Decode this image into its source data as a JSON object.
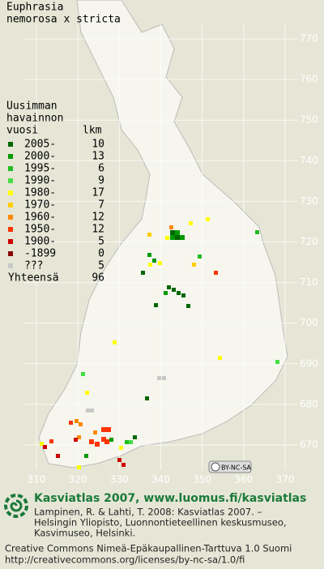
{
  "title": [
    "Euphrasia",
    "nemorosa x stricta"
  ],
  "legend": {
    "heading": [
      "Uusimman",
      "havainnon",
      "vuosi"
    ],
    "count_heading": "lkm",
    "rows": [
      {
        "label": "2005-",
        "count": 10,
        "color": "#006600"
      },
      {
        "label": "2000-",
        "count": 13,
        "color": "#009900"
      },
      {
        "label": "1995-",
        "count": 6,
        "color": "#22bb22"
      },
      {
        "label": "1990-",
        "count": 9,
        "color": "#44dd44"
      },
      {
        "label": "1980-",
        "count": 17,
        "color": "#ffff00"
      },
      {
        "label": "1970-",
        "count": 7,
        "color": "#ffcc00"
      },
      {
        "label": "1960-",
        "count": 12,
        "color": "#ff8800"
      },
      {
        "label": "1950-",
        "count": 12,
        "color": "#ff3300"
      },
      {
        "label": "1900-",
        "count": 5,
        "color": "#cc0000"
      },
      {
        "label": "-1899",
        "count": 0,
        "color": "#880000"
      },
      {
        "label": "???",
        "count": 5,
        "color": "#c8c8c8"
      }
    ],
    "total_label": "Yhteensä",
    "total": 96
  },
  "grid": {
    "x_labels": [
      310,
      320,
      330,
      340,
      350,
      360,
      370
    ],
    "y_labels": [
      670,
      680,
      690,
      700,
      710,
      720,
      730,
      740,
      750,
      760,
      770
    ]
  },
  "cc_badge": "BY-NC-SA",
  "footer": {
    "site": "Kasviatlas 2007, www.luomus.fi/kasviatlas",
    "citation": [
      "Lampinen, R. & Lahti, T. 2008: Kasviatlas 2007. –",
      "Helsingin Yliopisto, Luonnontieteellinen keskusmuseo,",
      "Kasvimuseo, Helsinki."
    ],
    "license": [
      "Creative Commons Nimeä-Epäkaupallinen-Tarttuva 1.0 Suomi",
      "http://creativecommons.org/licenses/by-nc-sa/1.0/fi"
    ]
  }
}
